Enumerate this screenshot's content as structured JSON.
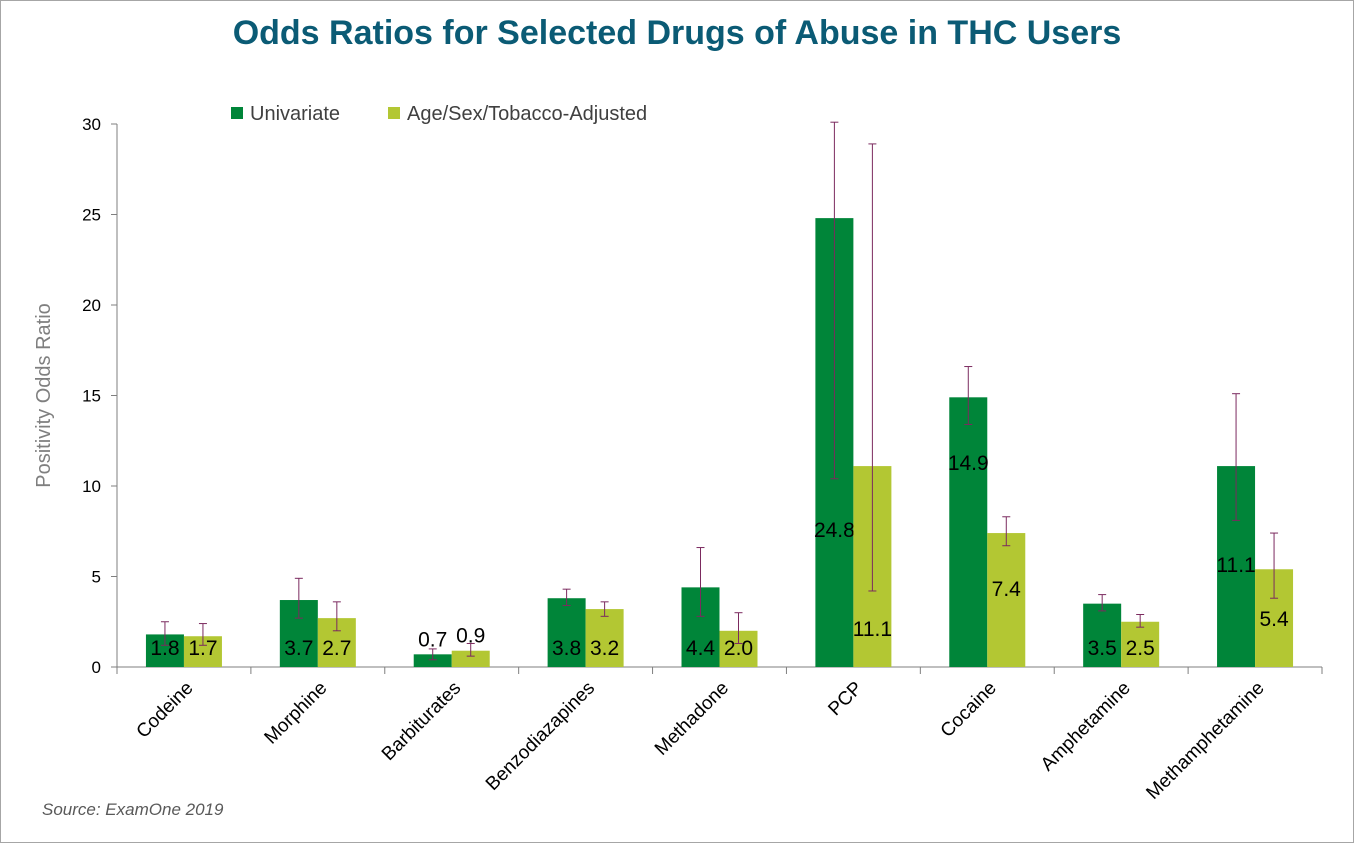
{
  "title": "Odds Ratios for Selected Drugs of Abuse in THC Users",
  "source": "Source: ExamOne 2019",
  "colors": {
    "title": "#0b5b75",
    "univariate": "#008539",
    "adjusted": "#b3c733",
    "error_bar": "#7b2a5f",
    "axis": "#7f7f7f",
    "text": "#000000"
  },
  "chart_data": {
    "type": "bar",
    "ylabel": "Positivity Odds Ratio",
    "xlabel": "",
    "ylim": [
      0,
      30
    ],
    "yticks": [
      0,
      5,
      10,
      15,
      20,
      25,
      30
    ],
    "grid": false,
    "legend_position": "top-left",
    "categories": [
      "Codeine",
      "Morphine",
      "Barbiturates",
      "Benzodiazapines",
      "Methadone",
      "PCP",
      "Cocaine",
      "Amphetamine",
      "Methamphetamine"
    ],
    "series": [
      {
        "name": "Univariate",
        "values": [
          1.8,
          3.7,
          0.7,
          3.8,
          4.4,
          24.8,
          14.9,
          3.5,
          11.1
        ],
        "labels": [
          "1.8",
          "3.7",
          "0.7",
          "3.8",
          "4.4",
          "24.8",
          "14.9",
          "3.5",
          "11.1"
        ],
        "ci_low": [
          1.2,
          2.7,
          0.4,
          3.4,
          2.8,
          10.4,
          13.4,
          3.1,
          8.1
        ],
        "ci_high": [
          2.5,
          4.9,
          1.0,
          4.3,
          6.6,
          30.1,
          16.6,
          4.0,
          15.1
        ]
      },
      {
        "name": "Age/Sex/Tobacco-Adjusted",
        "values": [
          1.7,
          2.7,
          0.9,
          3.2,
          2.0,
          11.1,
          7.4,
          2.5,
          5.4
        ],
        "labels": [
          "1.7",
          "2.7",
          "0.9",
          "3.2",
          "2.0",
          "11.1",
          "7.4",
          "2.5",
          "5.4"
        ],
        "ci_low": [
          1.2,
          2.0,
          0.6,
          2.8,
          1.3,
          4.2,
          6.7,
          2.2,
          3.8
        ],
        "ci_high": [
          2.4,
          3.6,
          1.3,
          3.6,
          3.0,
          28.9,
          8.3,
          2.9,
          7.4
        ]
      }
    ]
  }
}
